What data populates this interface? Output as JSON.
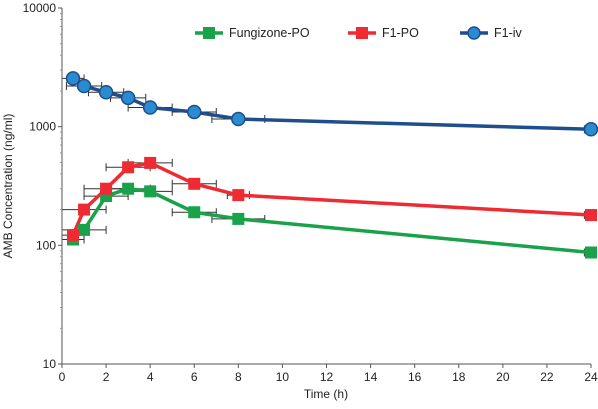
{
  "chart_data": {
    "type": "line",
    "xlabel": "Time (h)",
    "ylabel": "AMB Concentration (ng/ml)",
    "yscale": "log",
    "xlim": [
      0,
      24
    ],
    "ylim": [
      10,
      10000
    ],
    "x_ticks": [
      0,
      2,
      4,
      6,
      8,
      10,
      12,
      14,
      16,
      18,
      20,
      22,
      24
    ],
    "y_ticks": [
      10,
      100,
      1000,
      10000
    ],
    "x_tick_labels": [
      "0",
      "2",
      "4",
      "6",
      "8",
      "10",
      "12",
      "14",
      "16",
      "18",
      "20",
      "22",
      "24"
    ],
    "y_tick_labels": [
      "10",
      "100",
      "1000",
      "10000"
    ],
    "grid": false,
    "legend_position": "top-right",
    "series": [
      {
        "name": "Fungizone-PO",
        "color": "#1aa24a",
        "marker": "square",
        "x": [
          0.5,
          1,
          2,
          3,
          4,
          6,
          8,
          24
        ],
        "y": [
          112,
          135,
          260,
          300,
          285,
          190,
          167,
          87
        ],
        "x_err": [
          0.5,
          1,
          1,
          1,
          1,
          1,
          1.2,
          0.3
        ]
      },
      {
        "name": "F1-PO",
        "color": "#ee2b33",
        "marker": "square",
        "x": [
          0.5,
          1,
          2,
          3,
          4,
          6,
          8,
          24
        ],
        "y": [
          122,
          200,
          300,
          455,
          495,
          330,
          265,
          180
        ],
        "x_err": [
          0.5,
          1,
          1,
          1,
          1,
          1,
          0.5,
          0.3
        ]
      },
      {
        "name": "F1-iv",
        "color": "#1f4e8c",
        "marker_color": "#2a8bd0",
        "marker": "circle",
        "x": [
          0.5,
          1,
          2,
          3,
          4,
          6,
          8,
          24
        ],
        "y": [
          2550,
          2200,
          1950,
          1750,
          1450,
          1330,
          1160,
          950
        ],
        "x_err": [
          0.5,
          0.8,
          0.8,
          0.8,
          1,
          1,
          1.2,
          0.3
        ]
      }
    ]
  }
}
